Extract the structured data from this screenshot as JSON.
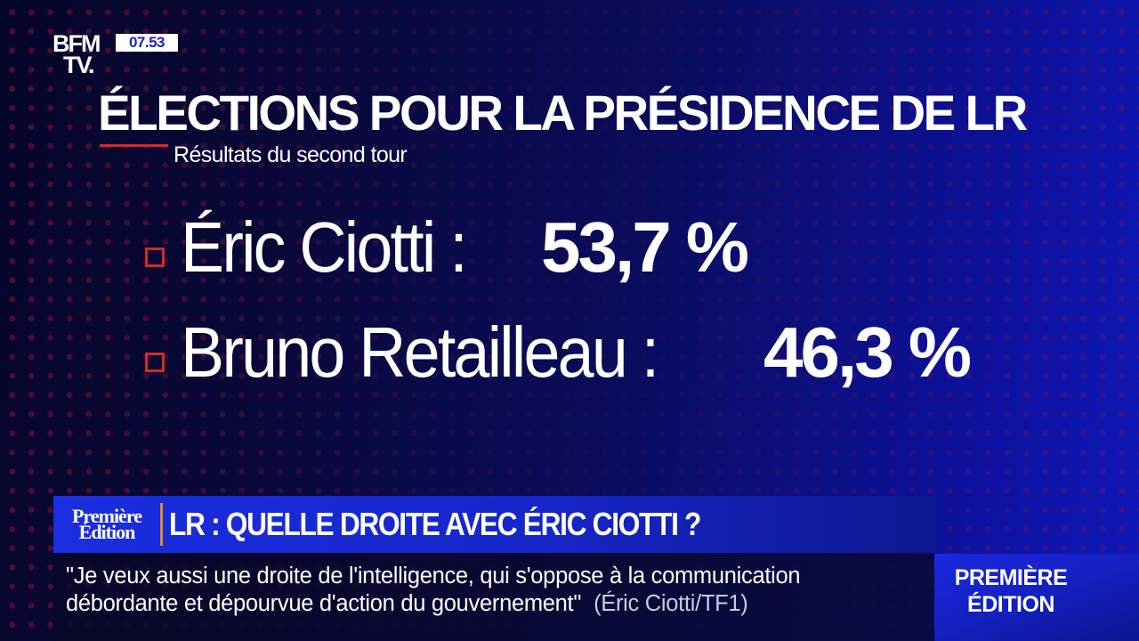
{
  "channel": {
    "logo_line1": "BFM",
    "logo_line2": "TV.",
    "clock": "07.53",
    "clock_color": "#1a24b8"
  },
  "graphic": {
    "title": "ÉLECTIONS POUR LA PRÉSIDENCE DE LR",
    "subtitle": "Résultats du second tour",
    "accent_color": "#d42a24",
    "results": [
      {
        "candidate": "Éric Ciotti :",
        "value": "53,7 %"
      },
      {
        "candidate": "Bruno Retailleau :",
        "value": "46,3 %"
      }
    ]
  },
  "lower_third": {
    "show_logo": "Première Édition",
    "show_logo_line1": "Première",
    "show_logo_line2": "Édition",
    "headline": "LR : QUELLE DROITE AVEC ÉRIC CIOTTI ?",
    "quote_line1": "\"Je veux aussi une droite de l'intelligence, qui s'oppose à la communication",
    "quote_line2": "débordante et dépourvue d'action du gouvernement\"",
    "quote_source": "(Éric Ciotti/TF1)",
    "side_label_line1": "PREMIÈRE",
    "side_label_line2": "ÉDITION"
  },
  "chart_data": {
    "type": "table",
    "title": "ÉLECTIONS POUR LA PRÉSIDENCE DE LR",
    "subtitle": "Résultats du second tour",
    "categories": [
      "Éric Ciotti",
      "Bruno Retailleau"
    ],
    "values": [
      53.7,
      46.3
    ],
    "unit": "%"
  }
}
